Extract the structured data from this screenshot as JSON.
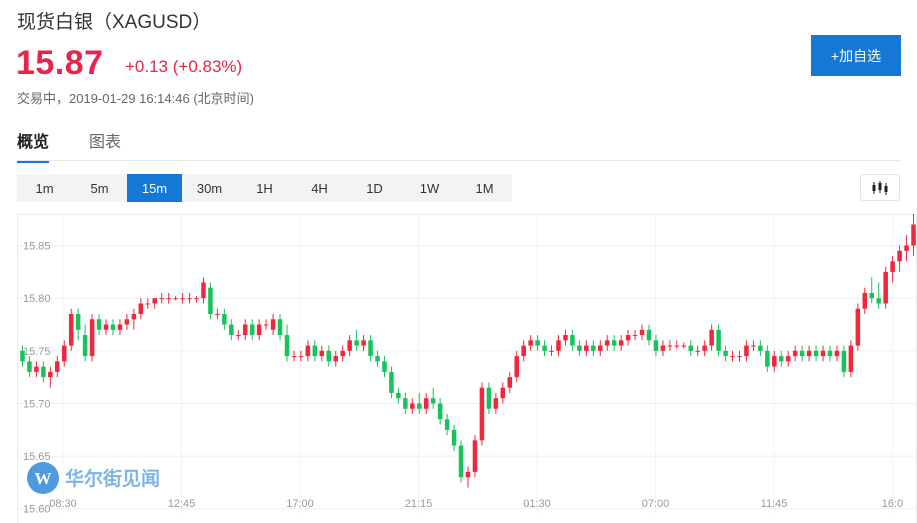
{
  "header": {
    "title": "现货白银（XAGUSD）",
    "price": "15.87",
    "change": "+0.13 (+0.83%)",
    "status": "交易中，2019-01-29 16:14:46 (北京时间)",
    "add_button": "+加自选"
  },
  "tabs": [
    {
      "label": "概览",
      "active": true
    },
    {
      "label": "图表",
      "active": false
    }
  ],
  "intervals": [
    "1m",
    "5m",
    "15m",
    "30m",
    "1H",
    "4H",
    "1D",
    "1W",
    "1M"
  ],
  "active_interval": "15m",
  "chart_type_icon": "candlestick-icon",
  "watermark": "华尔街见闻",
  "colors": {
    "up": "#f0283c",
    "down": "#19c25a",
    "accent": "#1478d4",
    "price": "#e8244b"
  },
  "chart_data": {
    "type": "candlestick",
    "x_ticks": [
      "08:30",
      "12:45",
      "17:00",
      "21:15",
      "01:30",
      "07:00",
      "11:45",
      "16:0"
    ],
    "y_ticks": [
      15.85,
      15.8,
      15.75,
      15.7,
      15.65,
      15.6
    ],
    "y_range": [
      15.595,
      15.88
    ],
    "grid": true,
    "candles_note": "approximate 15m OHLC read from chart",
    "candles": [
      [
        15.75,
        15.755,
        15.735,
        15.74
      ],
      [
        15.74,
        15.745,
        15.725,
        15.73
      ],
      [
        15.73,
        15.74,
        15.725,
        15.735
      ],
      [
        15.735,
        15.74,
        15.72,
        15.725
      ],
      [
        15.725,
        15.735,
        15.715,
        15.73
      ],
      [
        15.73,
        15.745,
        15.725,
        15.74
      ],
      [
        15.74,
        15.76,
        15.735,
        15.755
      ],
      [
        15.755,
        15.79,
        15.75,
        15.785
      ],
      [
        15.785,
        15.79,
        15.76,
        15.77
      ],
      [
        15.765,
        15.775,
        15.74,
        15.745
      ],
      [
        15.745,
        15.785,
        15.74,
        15.78
      ],
      [
        15.78,
        15.785,
        15.765,
        15.77
      ],
      [
        15.77,
        15.78,
        15.765,
        15.775
      ],
      [
        15.775,
        15.78,
        15.765,
        15.77
      ],
      [
        15.77,
        15.78,
        15.765,
        15.775
      ],
      [
        15.775,
        15.785,
        15.77,
        15.78
      ],
      [
        15.78,
        15.79,
        15.77,
        15.785
      ],
      [
        15.785,
        15.8,
        15.78,
        15.795
      ],
      [
        15.795,
        15.8,
        15.79,
        15.795
      ],
      [
        15.795,
        15.8,
        15.79,
        15.8
      ],
      [
        15.8,
        15.805,
        15.795,
        15.8
      ],
      [
        15.8,
        15.805,
        15.795,
        15.8
      ],
      [
        15.8,
        15.802,
        15.798,
        15.8
      ],
      [
        15.8,
        15.805,
        15.795,
        15.8
      ],
      [
        15.8,
        15.805,
        15.795,
        15.8
      ],
      [
        15.8,
        15.802,
        15.796,
        15.8
      ],
      [
        15.8,
        15.82,
        15.795,
        15.815
      ],
      [
        15.81,
        15.815,
        15.78,
        15.785
      ],
      [
        15.785,
        15.79,
        15.78,
        15.785
      ],
      [
        15.785,
        15.79,
        15.77,
        15.775
      ],
      [
        15.775,
        15.78,
        15.76,
        15.765
      ],
      [
        15.765,
        15.77,
        15.76,
        15.765
      ],
      [
        15.765,
        15.78,
        15.76,
        15.775
      ],
      [
        15.775,
        15.78,
        15.76,
        15.765
      ],
      [
        15.765,
        15.78,
        15.76,
        15.775
      ],
      [
        15.775,
        15.78,
        15.77,
        15.775
      ],
      [
        15.77,
        15.785,
        15.765,
        15.78
      ],
      [
        15.78,
        15.785,
        15.76,
        15.765
      ],
      [
        15.765,
        15.775,
        15.74,
        15.745
      ],
      [
        15.745,
        15.75,
        15.74,
        15.745
      ],
      [
        15.745,
        15.75,
        15.74,
        15.745
      ],
      [
        15.745,
        15.76,
        15.74,
        15.755
      ],
      [
        15.755,
        15.76,
        15.74,
        15.745
      ],
      [
        15.745,
        15.755,
        15.74,
        15.75
      ],
      [
        15.75,
        15.755,
        15.735,
        15.74
      ],
      [
        15.74,
        15.75,
        15.735,
        15.745
      ],
      [
        15.745,
        15.755,
        15.74,
        15.75
      ],
      [
        15.75,
        15.765,
        15.745,
        15.76
      ],
      [
        15.76,
        15.77,
        15.75,
        15.755
      ],
      [
        15.755,
        15.765,
        15.75,
        15.76
      ],
      [
        15.76,
        15.765,
        15.74,
        15.745
      ],
      [
        15.745,
        15.75,
        15.735,
        15.74
      ],
      [
        15.74,
        15.745,
        15.725,
        15.73
      ],
      [
        15.73,
        15.735,
        15.705,
        15.71
      ],
      [
        15.71,
        15.715,
        15.7,
        15.705
      ],
      [
        15.705,
        15.71,
        15.69,
        15.695
      ],
      [
        15.695,
        15.705,
        15.69,
        15.7
      ],
      [
        15.7,
        15.71,
        15.69,
        15.695
      ],
      [
        15.695,
        15.71,
        15.69,
        15.705
      ],
      [
        15.705,
        15.715,
        15.695,
        15.7
      ],
      [
        15.7,
        15.705,
        15.68,
        15.685
      ],
      [
        15.685,
        15.69,
        15.67,
        15.675
      ],
      [
        15.675,
        15.68,
        15.655,
        15.66
      ],
      [
        15.66,
        15.665,
        15.625,
        15.63
      ],
      [
        15.63,
        15.64,
        15.62,
        15.635
      ],
      [
        15.635,
        15.67,
        15.63,
        15.665
      ],
      [
        15.665,
        15.72,
        15.66,
        15.715
      ],
      [
        15.715,
        15.72,
        15.69,
        15.695
      ],
      [
        15.695,
        15.71,
        15.69,
        15.705
      ],
      [
        15.705,
        15.72,
        15.7,
        15.715
      ],
      [
        15.715,
        15.73,
        15.71,
        15.725
      ],
      [
        15.725,
        15.75,
        15.72,
        15.745
      ],
      [
        15.745,
        15.76,
        15.74,
        15.755
      ],
      [
        15.755,
        15.765,
        15.75,
        15.76
      ],
      [
        15.76,
        15.765,
        15.75,
        15.755
      ],
      [
        15.755,
        15.76,
        15.745,
        15.75
      ],
      [
        15.75,
        15.755,
        15.745,
        15.75
      ],
      [
        15.75,
        15.765,
        15.745,
        15.76
      ],
      [
        15.76,
        15.77,
        15.755,
        15.765
      ],
      [
        15.765,
        15.77,
        15.75,
        15.755
      ],
      [
        15.755,
        15.76,
        15.745,
        15.75
      ],
      [
        15.75,
        15.76,
        15.745,
        15.755
      ],
      [
        15.755,
        15.76,
        15.745,
        15.75
      ],
      [
        15.75,
        15.76,
        15.745,
        15.755
      ],
      [
        15.755,
        15.765,
        15.75,
        15.76
      ],
      [
        15.76,
        15.765,
        15.75,
        15.755
      ],
      [
        15.755,
        15.765,
        15.75,
        15.76
      ],
      [
        15.76,
        15.77,
        15.755,
        15.765
      ],
      [
        15.765,
        15.77,
        15.76,
        15.765
      ],
      [
        15.765,
        15.775,
        15.76,
        15.77
      ],
      [
        15.77,
        15.775,
        15.755,
        15.76
      ],
      [
        15.76,
        15.765,
        15.745,
        15.75
      ],
      [
        15.75,
        15.76,
        15.745,
        15.755
      ],
      [
        15.755,
        15.76,
        15.75,
        15.755
      ],
      [
        15.755,
        15.76,
        15.752,
        15.755
      ],
      [
        15.755,
        15.758,
        15.752,
        15.755
      ],
      [
        15.755,
        15.76,
        15.745,
        15.75
      ],
      [
        15.75,
        15.755,
        15.745,
        15.75
      ],
      [
        15.75,
        15.76,
        15.745,
        15.755
      ],
      [
        15.755,
        15.775,
        15.75,
        15.77
      ],
      [
        15.77,
        15.775,
        15.745,
        15.75
      ],
      [
        15.75,
        15.755,
        15.74,
        15.745
      ],
      [
        15.745,
        15.75,
        15.74,
        15.745
      ],
      [
        15.745,
        15.75,
        15.74,
        15.745
      ],
      [
        15.745,
        15.76,
        15.74,
        15.755
      ],
      [
        15.755,
        15.76,
        15.75,
        15.755
      ],
      [
        15.755,
        15.76,
        15.745,
        15.75
      ],
      [
        15.75,
        15.755,
        15.73,
        15.735
      ],
      [
        15.735,
        15.75,
        15.73,
        15.745
      ],
      [
        15.745,
        15.75,
        15.735,
        15.74
      ],
      [
        15.74,
        15.75,
        15.735,
        15.745
      ],
      [
        15.745,
        15.755,
        15.74,
        15.75
      ],
      [
        15.75,
        15.755,
        15.74,
        15.745
      ],
      [
        15.745,
        15.755,
        15.74,
        15.75
      ],
      [
        15.75,
        15.755,
        15.74,
        15.745
      ],
      [
        15.745,
        15.755,
        15.74,
        15.75
      ],
      [
        15.75,
        15.755,
        15.74,
        15.745
      ],
      [
        15.745,
        15.755,
        15.74,
        15.75
      ],
      [
        15.75,
        15.755,
        15.725,
        15.73
      ],
      [
        15.73,
        15.76,
        15.725,
        15.755
      ],
      [
        15.755,
        15.795,
        15.75,
        15.79
      ],
      [
        15.79,
        15.81,
        15.785,
        15.805
      ],
      [
        15.805,
        15.82,
        15.795,
        15.8
      ],
      [
        15.8,
        15.815,
        15.79,
        15.795
      ],
      [
        15.795,
        15.83,
        15.79,
        15.825
      ],
      [
        15.825,
        15.84,
        15.815,
        15.835
      ],
      [
        15.835,
        15.85,
        15.825,
        15.845
      ],
      [
        15.845,
        15.86,
        15.835,
        15.85
      ],
      [
        15.85,
        15.88,
        15.84,
        15.87
      ]
    ]
  }
}
